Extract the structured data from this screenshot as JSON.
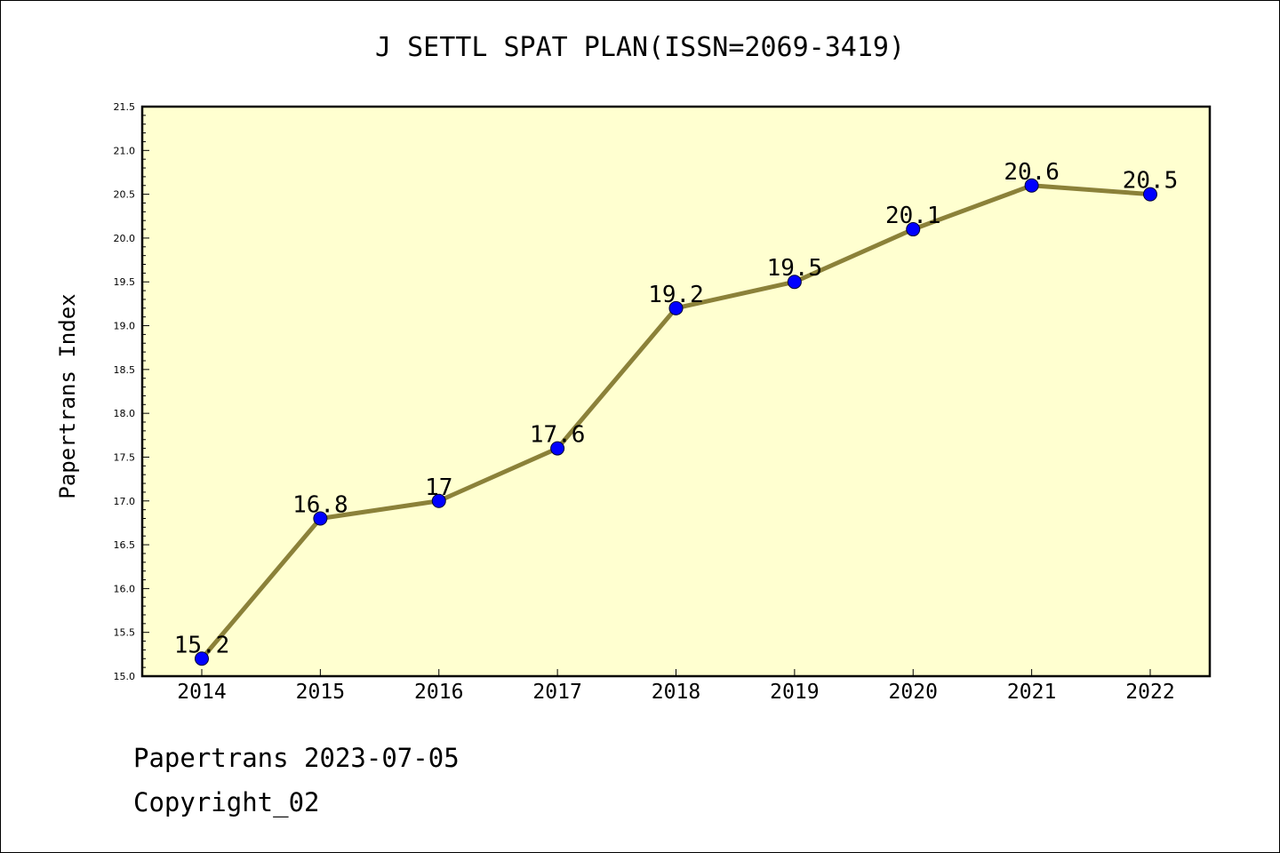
{
  "header": {
    "title": "J SETTL SPAT PLAN(ISSN=2069-3419)"
  },
  "footer": {
    "line1": "Papertrans 2023-07-05",
    "line2": "Copyright_02"
  },
  "chart_data": {
    "type": "line",
    "title": "J SETTL SPAT PLAN(ISSN=2069-3419)",
    "xlabel": "",
    "ylabel": "Papertrans Index",
    "categories": [
      "2014",
      "2015",
      "2016",
      "2017",
      "2018",
      "2019",
      "2020",
      "2021",
      "2022"
    ],
    "series": [
      {
        "values": [
          15.2,
          16.8,
          17,
          17.6,
          19.2,
          19.5,
          20.1,
          20.6,
          20.5
        ]
      }
    ],
    "data_labels": [
      "15.2",
      "16.8",
      "17",
      "17.6",
      "19.2",
      "19.5",
      "20.1",
      "20.6",
      "20.5"
    ],
    "ylim": [
      15.0,
      21.5
    ],
    "yticks": [
      "15.0",
      "15.5",
      "16.0",
      "16.5",
      "17.0",
      "17.5",
      "18.0",
      "18.5",
      "19.0",
      "19.5",
      "20.0",
      "20.5",
      "21.0",
      "21.5"
    ],
    "grid": false,
    "colors": {
      "plot_background": "#ffffd0",
      "line": "#8b8139",
      "marker": "#0000ff",
      "marker_edge": "#000033"
    }
  }
}
